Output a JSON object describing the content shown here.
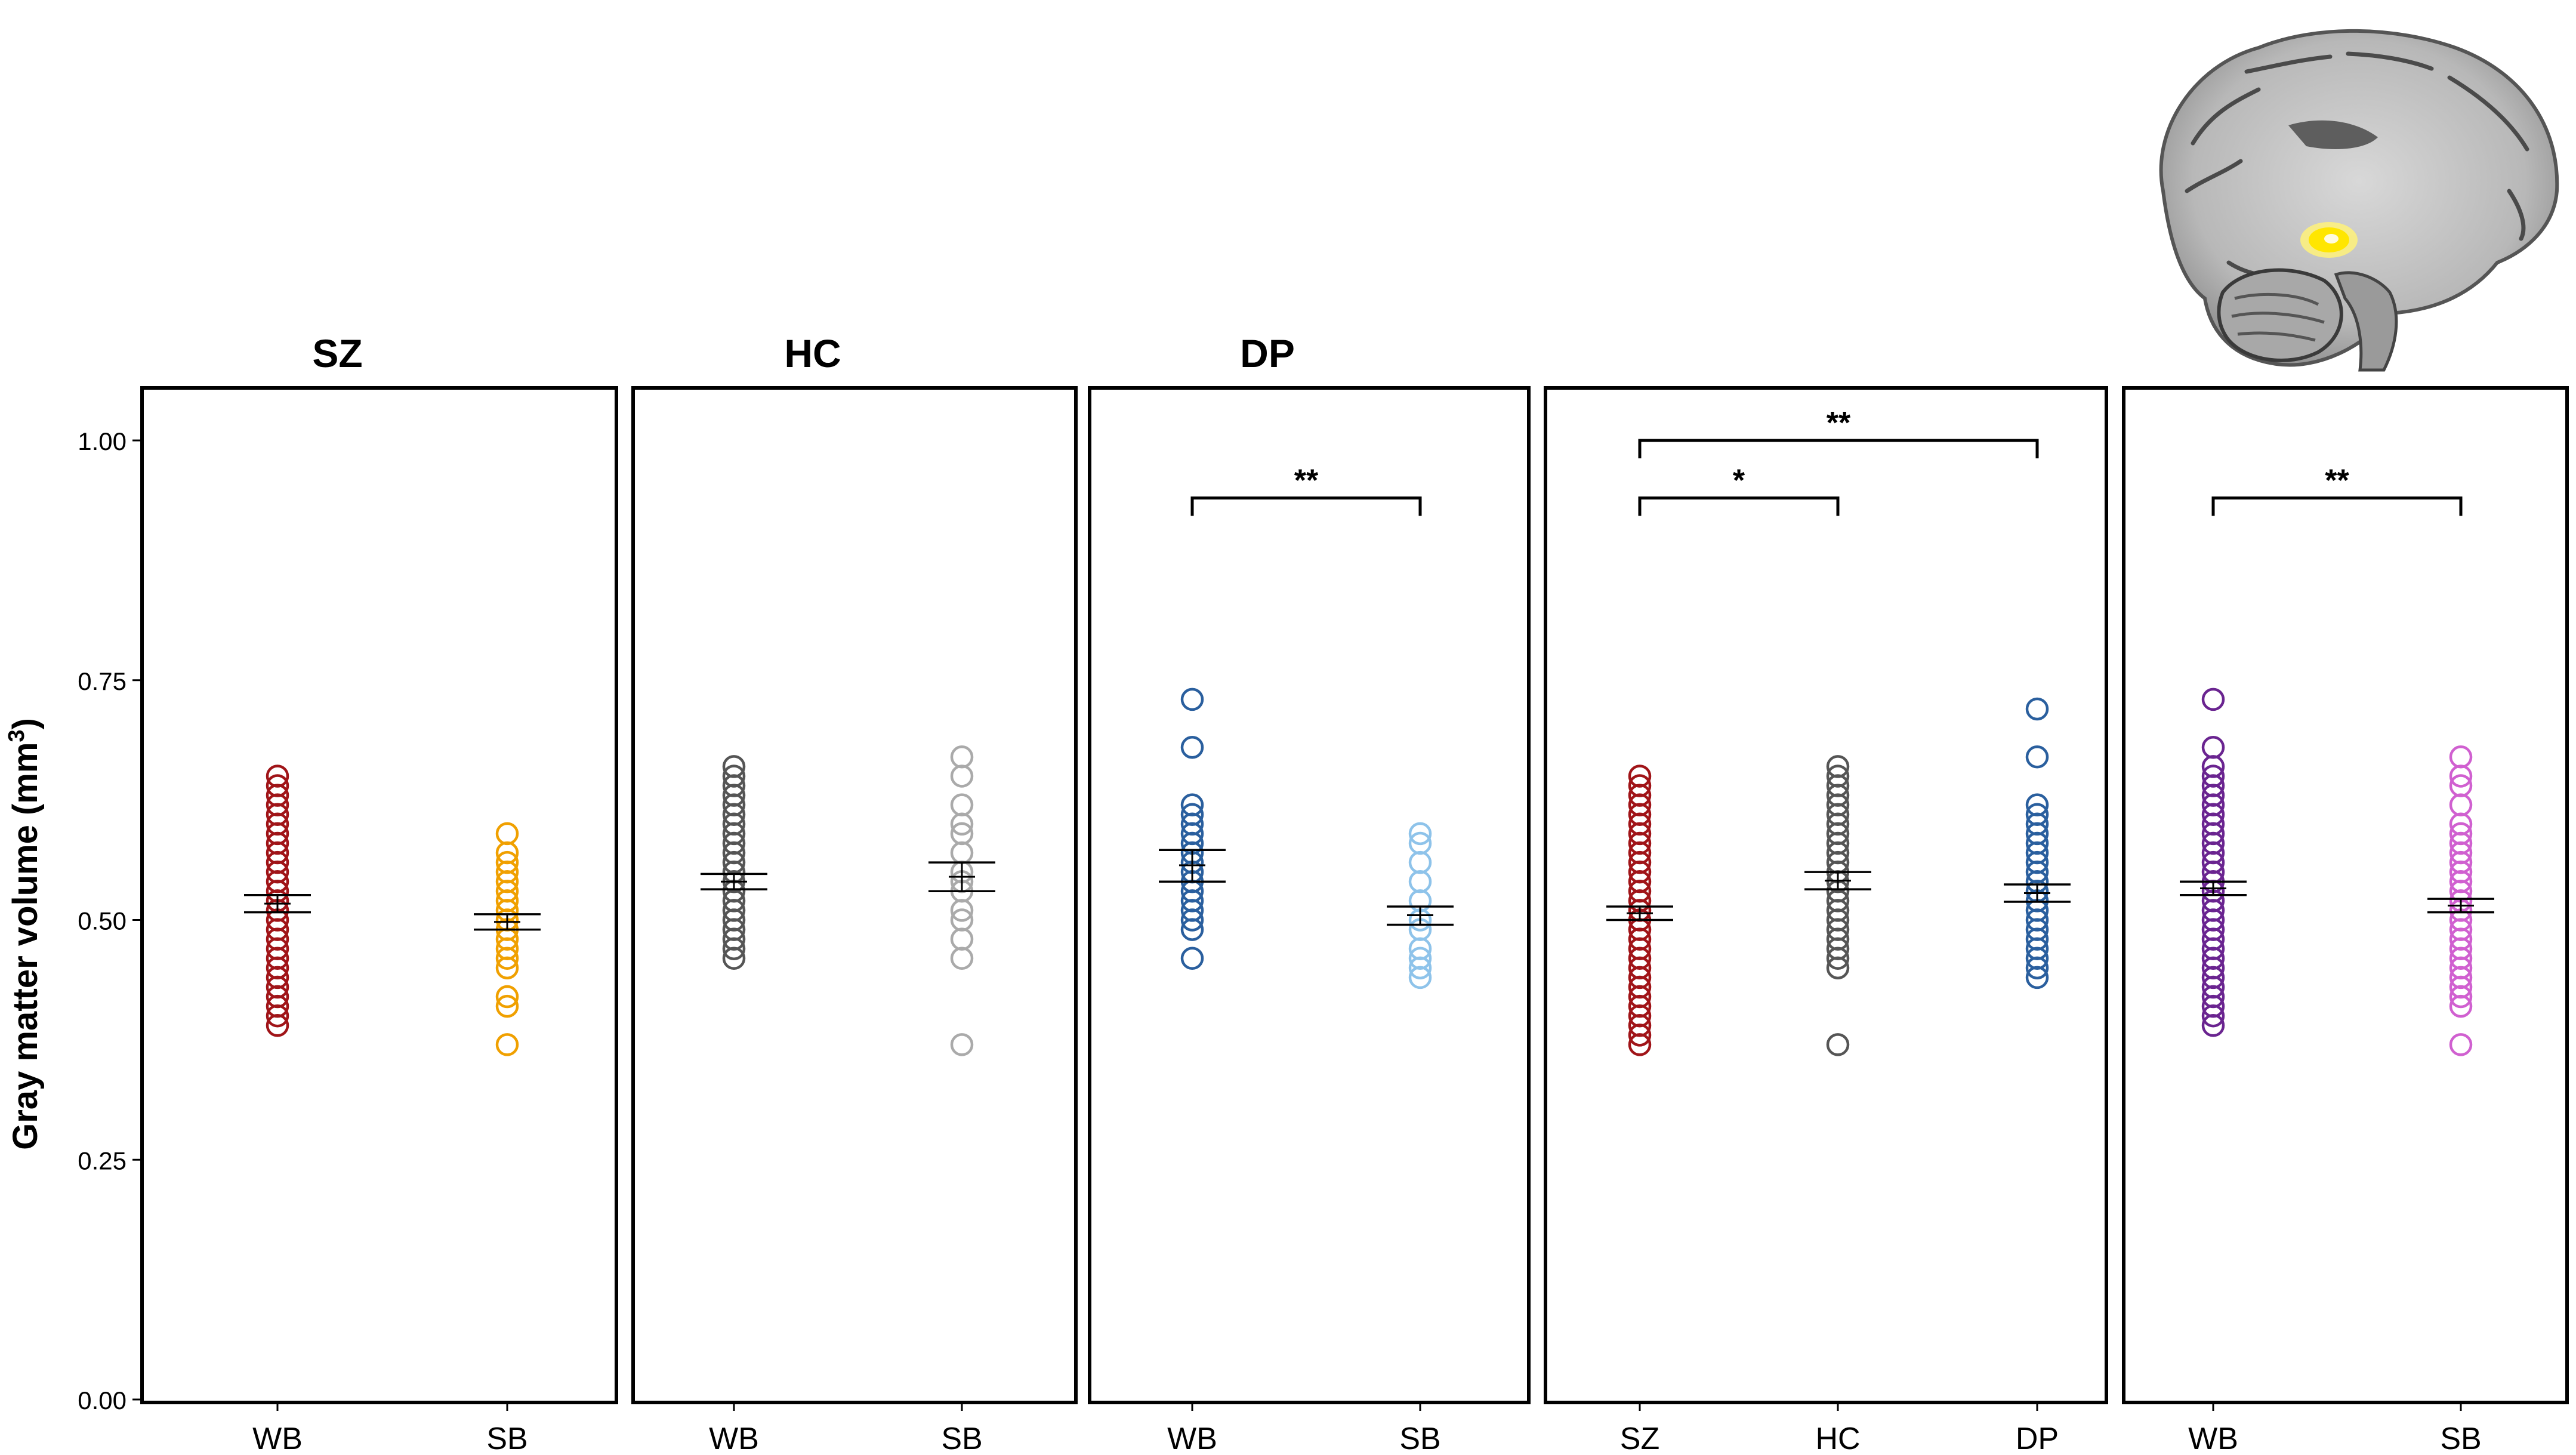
{
  "figure": {
    "y_axis_label": "Gray matter volume (mm",
    "y_axis_label_superscript": "3",
    "y_axis_label_close": ")",
    "brain_highlight_color": "#ffe600"
  },
  "chart_data": [
    {
      "type": "scatter",
      "panel_title": "SZ",
      "categories": [
        "WB",
        "SB"
      ],
      "ylim": [
        0,
        1
      ],
      "yticks": [
        "0.00",
        "0.25",
        "0.50",
        "0.75",
        "1.00"
      ],
      "series": [
        {
          "category": "WB",
          "color": "#a01418",
          "mean": 0.517,
          "error": [
            0.508,
            0.526
          ],
          "values": [
            0.39,
            0.4,
            0.41,
            0.42,
            0.43,
            0.44,
            0.45,
            0.46,
            0.47,
            0.48,
            0.49,
            0.5,
            0.51,
            0.52,
            0.53,
            0.54,
            0.55,
            0.56,
            0.57,
            0.58,
            0.59,
            0.6,
            0.61,
            0.62,
            0.63,
            0.64,
            0.65
          ]
        },
        {
          "category": "SB",
          "color": "#f0a000",
          "mean": 0.498,
          "error": [
            0.49,
            0.506
          ],
          "values": [
            0.37,
            0.41,
            0.42,
            0.45,
            0.46,
            0.47,
            0.48,
            0.49,
            0.5,
            0.51,
            0.52,
            0.53,
            0.54,
            0.55,
            0.56,
            0.57,
            0.59
          ]
        }
      ],
      "significance": []
    },
    {
      "type": "scatter",
      "panel_title": "HC",
      "categories": [
        "WB",
        "SB"
      ],
      "ylim": [
        0,
        1
      ],
      "series": [
        {
          "category": "WB",
          "color": "#555555",
          "mean": 0.54,
          "error": [
            0.532,
            0.548
          ],
          "values": [
            0.46,
            0.47,
            0.48,
            0.49,
            0.5,
            0.51,
            0.52,
            0.53,
            0.54,
            0.55,
            0.56,
            0.57,
            0.58,
            0.59,
            0.6,
            0.61,
            0.62,
            0.63,
            0.64,
            0.65,
            0.66
          ]
        },
        {
          "category": "SB",
          "color": "#aaaaaa",
          "mean": 0.545,
          "error": [
            0.53,
            0.56
          ],
          "values": [
            0.37,
            0.46,
            0.48,
            0.5,
            0.51,
            0.53,
            0.54,
            0.55,
            0.57,
            0.59,
            0.6,
            0.62,
            0.65,
            0.67
          ]
        }
      ],
      "significance": []
    },
    {
      "type": "scatter",
      "panel_title": "DP",
      "categories": [
        "WB",
        "SB"
      ],
      "ylim": [
        0,
        1
      ],
      "series": [
        {
          "category": "WB",
          "color": "#2a5f9e",
          "mean": 0.557,
          "error": [
            0.54,
            0.573
          ],
          "values": [
            0.46,
            0.49,
            0.5,
            0.51,
            0.52,
            0.53,
            0.54,
            0.55,
            0.56,
            0.57,
            0.58,
            0.59,
            0.6,
            0.61,
            0.62,
            0.68,
            0.73
          ]
        },
        {
          "category": "SB",
          "color": "#8ec3ea",
          "mean": 0.505,
          "error": [
            0.495,
            0.514
          ],
          "values": [
            0.44,
            0.45,
            0.46,
            0.47,
            0.49,
            0.5,
            0.52,
            0.54,
            0.56,
            0.58,
            0.59
          ]
        }
      ],
      "significance": [
        {
          "from": "WB",
          "to": "SB",
          "label": "**",
          "y": 0.94
        }
      ]
    },
    {
      "type": "scatter",
      "panel_title": "",
      "categories": [
        "SZ",
        "HC",
        "DP"
      ],
      "ylim": [
        0,
        1
      ],
      "series": [
        {
          "category": "SZ",
          "color": "#a01418",
          "mean": 0.507,
          "error": [
            0.5,
            0.514
          ],
          "values": [
            0.37,
            0.38,
            0.39,
            0.4,
            0.41,
            0.42,
            0.43,
            0.44,
            0.45,
            0.46,
            0.47,
            0.48,
            0.49,
            0.5,
            0.51,
            0.52,
            0.53,
            0.54,
            0.55,
            0.56,
            0.57,
            0.58,
            0.59,
            0.6,
            0.61,
            0.62,
            0.63,
            0.64,
            0.65
          ]
        },
        {
          "category": "HC",
          "color": "#555555",
          "mean": 0.541,
          "error": [
            0.532,
            0.55
          ],
          "values": [
            0.37,
            0.45,
            0.46,
            0.47,
            0.48,
            0.49,
            0.5,
            0.51,
            0.52,
            0.53,
            0.54,
            0.55,
            0.56,
            0.57,
            0.58,
            0.59,
            0.6,
            0.61,
            0.62,
            0.63,
            0.64,
            0.65,
            0.66
          ]
        },
        {
          "category": "DP",
          "color": "#2a5f9e",
          "mean": 0.528,
          "error": [
            0.519,
            0.537
          ],
          "values": [
            0.44,
            0.45,
            0.46,
            0.47,
            0.48,
            0.49,
            0.5,
            0.51,
            0.52,
            0.53,
            0.54,
            0.55,
            0.56,
            0.57,
            0.58,
            0.59,
            0.6,
            0.61,
            0.62,
            0.67,
            0.72
          ]
        }
      ],
      "significance": [
        {
          "from": "SZ",
          "to": "HC",
          "label": "*",
          "y": 0.94
        },
        {
          "from": "SZ",
          "to": "DP",
          "label": "**",
          "y": 1.0
        }
      ]
    },
    {
      "type": "scatter",
      "panel_title": "",
      "categories": [
        "WB",
        "SB"
      ],
      "ylim": [
        0,
        1
      ],
      "series": [
        {
          "category": "WB",
          "color": "#6a2490",
          "mean": 0.533,
          "error": [
            0.526,
            0.54
          ],
          "values": [
            0.39,
            0.4,
            0.41,
            0.42,
            0.43,
            0.44,
            0.45,
            0.46,
            0.47,
            0.48,
            0.49,
            0.5,
            0.51,
            0.52,
            0.53,
            0.54,
            0.55,
            0.56,
            0.57,
            0.58,
            0.59,
            0.6,
            0.61,
            0.62,
            0.63,
            0.64,
            0.65,
            0.66,
            0.68,
            0.73
          ]
        },
        {
          "category": "SB",
          "color": "#d060d0",
          "mean": 0.515,
          "error": [
            0.508,
            0.522
          ],
          "values": [
            0.37,
            0.41,
            0.42,
            0.43,
            0.44,
            0.45,
            0.46,
            0.47,
            0.48,
            0.49,
            0.5,
            0.51,
            0.52,
            0.53,
            0.54,
            0.55,
            0.56,
            0.57,
            0.58,
            0.59,
            0.6,
            0.62,
            0.64,
            0.65,
            0.67
          ]
        }
      ],
      "significance": [
        {
          "from": "WB",
          "to": "SB",
          "label": "**",
          "y": 0.94
        }
      ]
    }
  ]
}
